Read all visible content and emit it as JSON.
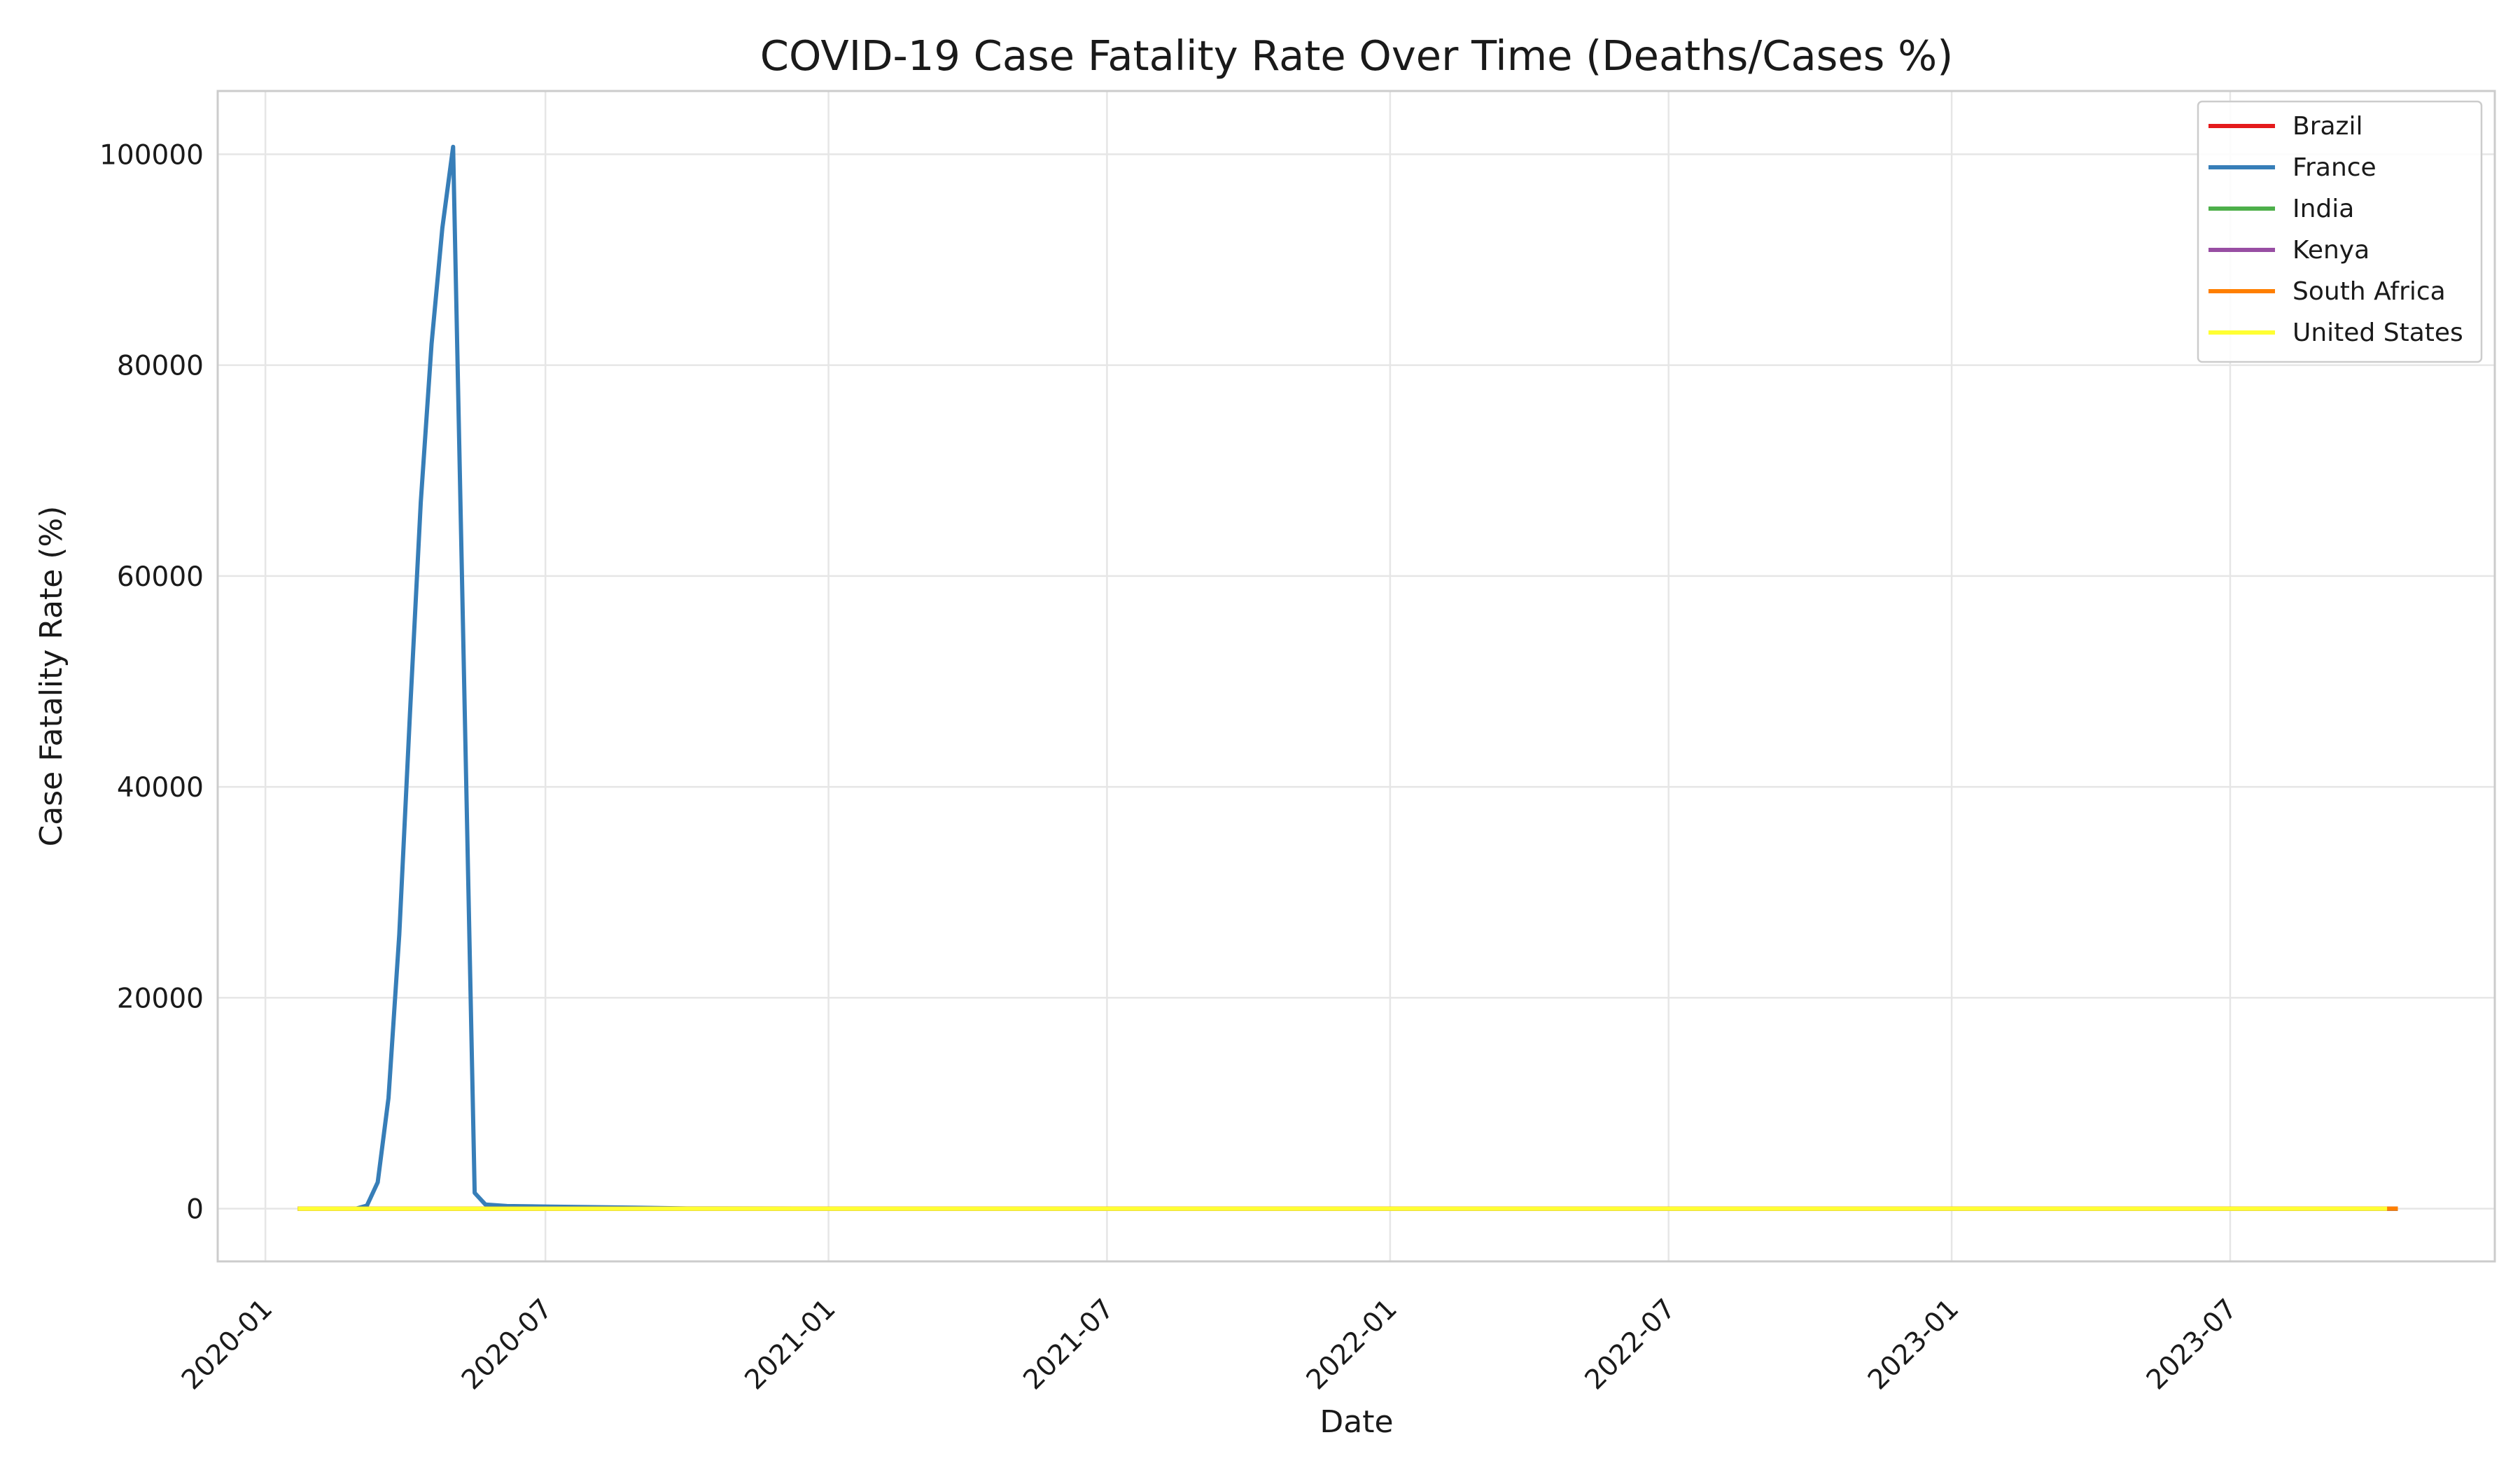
{
  "chart_data": {
    "type": "line",
    "title": "COVID-19 Case Fatality Rate Over Time (Deaths/Cases %)",
    "xlabel": "Date",
    "ylabel": "Case Fatality Rate (%)",
    "x_ticks": [
      "2020-01",
      "2020-07",
      "2021-01",
      "2021-07",
      "2022-01",
      "2022-07",
      "2023-01",
      "2023-07"
    ],
    "y_ticks": [
      0,
      20000,
      40000,
      60000,
      80000,
      100000
    ],
    "xlim": [
      "2019-12-01",
      "2023-12-20"
    ],
    "ylim": [
      -5000,
      106000
    ],
    "grid": true,
    "legend_position": "top-right",
    "series": [
      {
        "name": "Brazil",
        "color": "#e41a1c",
        "points": [
          [
            "2020-01-22",
            0
          ],
          [
            "2023-10-18",
            2
          ]
        ]
      },
      {
        "name": "France",
        "color": "#377eb8",
        "points": [
          [
            "2020-01-22",
            0
          ],
          [
            "2020-02-29",
            0
          ],
          [
            "2020-03-07",
            300
          ],
          [
            "2020-03-14",
            2500
          ],
          [
            "2020-03-21",
            10500
          ],
          [
            "2020-03-28",
            26000
          ],
          [
            "2020-04-04",
            47000
          ],
          [
            "2020-04-11",
            67000
          ],
          [
            "2020-04-18",
            82000
          ],
          [
            "2020-04-25",
            93000
          ],
          [
            "2020-05-02",
            100700
          ],
          [
            "2020-05-16",
            1500
          ],
          [
            "2020-05-23",
            400
          ],
          [
            "2020-06-06",
            250
          ],
          [
            "2020-07-04",
            200
          ],
          [
            "2020-08-29",
            100
          ],
          [
            "2020-10-01",
            20
          ],
          [
            "2021-01-01",
            10
          ],
          [
            "2023-10-18",
            0
          ]
        ]
      },
      {
        "name": "India",
        "color": "#4daf4a",
        "points": [
          [
            "2020-01-22",
            0
          ],
          [
            "2023-10-18",
            1
          ]
        ]
      },
      {
        "name": "Kenya",
        "color": "#984ea3",
        "points": [
          [
            "2020-01-22",
            0
          ],
          [
            "2023-10-18",
            2
          ]
        ]
      },
      {
        "name": "South Africa",
        "color": "#ff7f00",
        "points": [
          [
            "2020-01-22",
            0
          ],
          [
            "2023-10-18",
            3
          ]
        ]
      },
      {
        "name": "United States",
        "color": "#ffff33",
        "points": [
          [
            "2020-01-22",
            0
          ],
          [
            "2023-10-11",
            1
          ]
        ]
      }
    ]
  }
}
